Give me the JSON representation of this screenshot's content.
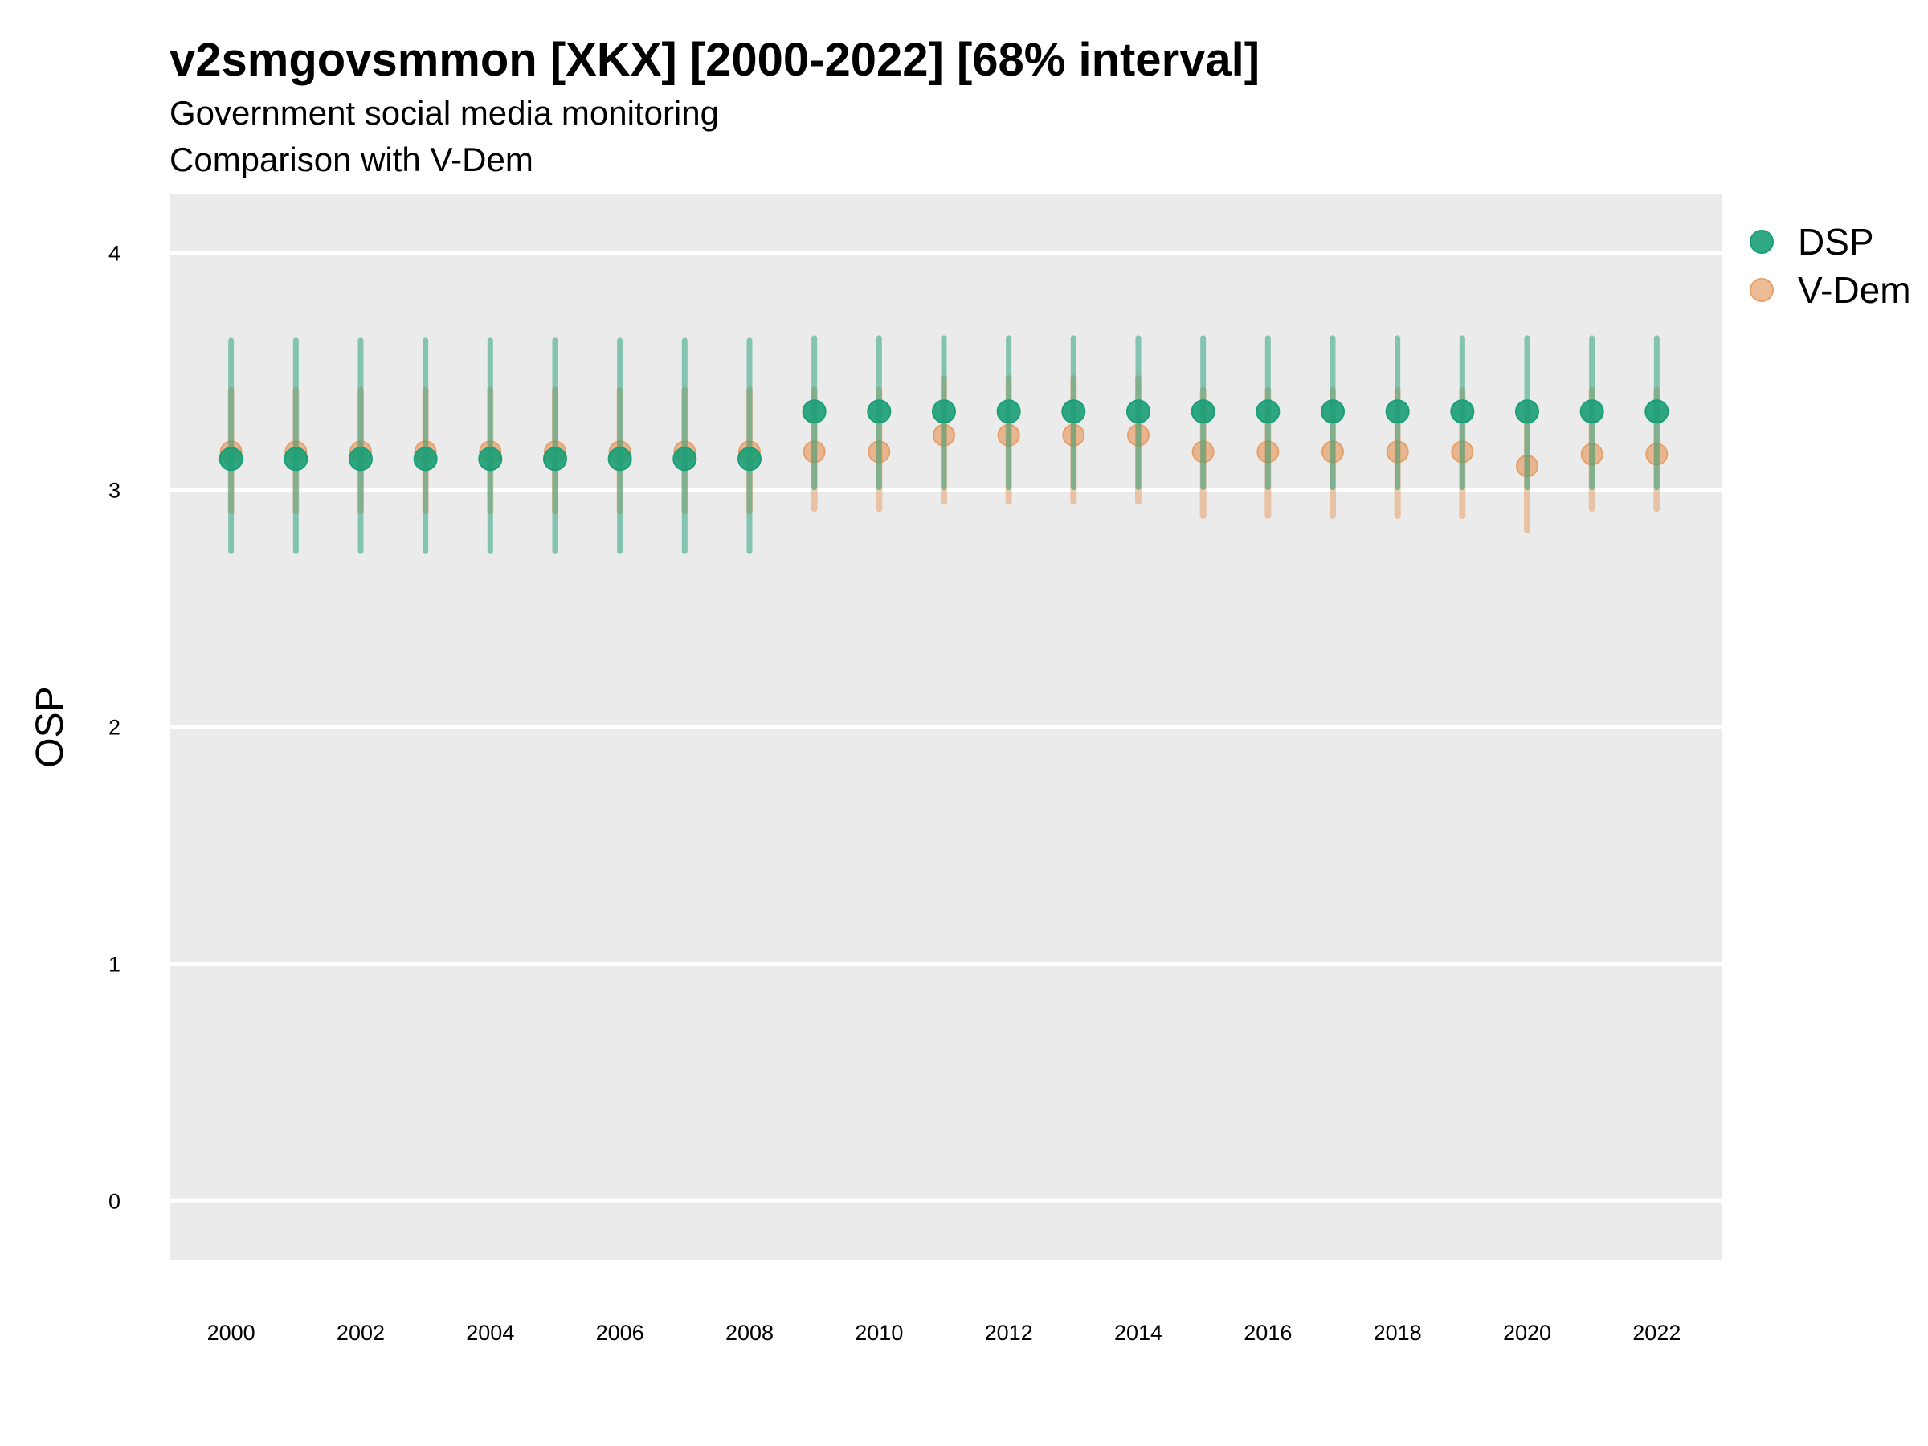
{
  "chart_data": {
    "type": "scatter",
    "title": "v2smgovsmmon [XKX] [2000-2022] [68% interval]",
    "subtitle_lines": [
      "Government social media monitoring",
      "Comparison with V-Dem"
    ],
    "xlabel": "",
    "ylabel": "OSP",
    "ylim": [
      -0.25,
      4.25
    ],
    "xlim": [
      1999.05,
      2023.0
    ],
    "y_ticks": [
      0,
      1,
      2,
      3,
      4
    ],
    "x_ticks": [
      2000,
      2002,
      2004,
      2006,
      2008,
      2010,
      2012,
      2014,
      2016,
      2018,
      2020,
      2022
    ],
    "grid": true,
    "legend_position": "right",
    "x": [
      2000,
      2001,
      2002,
      2003,
      2004,
      2005,
      2006,
      2007,
      2008,
      2009,
      2010,
      2011,
      2012,
      2013,
      2014,
      2015,
      2016,
      2017,
      2018,
      2019,
      2020,
      2021,
      2022
    ],
    "series": [
      {
        "name": "DSP",
        "color": "#1b9e77",
        "values": [
          3.13,
          3.13,
          3.13,
          3.13,
          3.13,
          3.13,
          3.13,
          3.13,
          3.13,
          3.33,
          3.33,
          3.33,
          3.33,
          3.33,
          3.33,
          3.33,
          3.33,
          3.33,
          3.33,
          3.33,
          3.33,
          3.33,
          3.33
        ],
        "lower": [
          2.74,
          2.74,
          2.74,
          2.74,
          2.74,
          2.74,
          2.74,
          2.74,
          2.74,
          3.01,
          3.01,
          3.01,
          3.01,
          3.01,
          3.01,
          3.01,
          3.01,
          3.01,
          3.01,
          3.01,
          3.01,
          3.01,
          3.01
        ],
        "upper": [
          3.63,
          3.63,
          3.63,
          3.63,
          3.63,
          3.63,
          3.63,
          3.63,
          3.63,
          3.64,
          3.64,
          3.64,
          3.64,
          3.64,
          3.64,
          3.64,
          3.64,
          3.64,
          3.64,
          3.64,
          3.64,
          3.64,
          3.64
        ]
      },
      {
        "name": "V-Dem",
        "color": "#e6a06a",
        "values": [
          3.16,
          3.16,
          3.16,
          3.16,
          3.16,
          3.16,
          3.16,
          3.16,
          3.16,
          3.16,
          3.16,
          3.23,
          3.23,
          3.23,
          3.23,
          3.16,
          3.16,
          3.16,
          3.16,
          3.16,
          3.1,
          3.15,
          3.15
        ],
        "lower": [
          2.91,
          2.91,
          2.91,
          2.91,
          2.91,
          2.91,
          2.91,
          2.91,
          2.91,
          2.92,
          2.92,
          2.95,
          2.95,
          2.95,
          2.95,
          2.89,
          2.89,
          2.89,
          2.89,
          2.89,
          2.83,
          2.92,
          2.92
        ],
        "upper": [
          3.42,
          3.42,
          3.42,
          3.42,
          3.42,
          3.42,
          3.42,
          3.42,
          3.42,
          3.42,
          3.42,
          3.47,
          3.47,
          3.47,
          3.47,
          3.42,
          3.42,
          3.42,
          3.42,
          3.42,
          3.36,
          3.42,
          3.42
        ]
      }
    ]
  }
}
